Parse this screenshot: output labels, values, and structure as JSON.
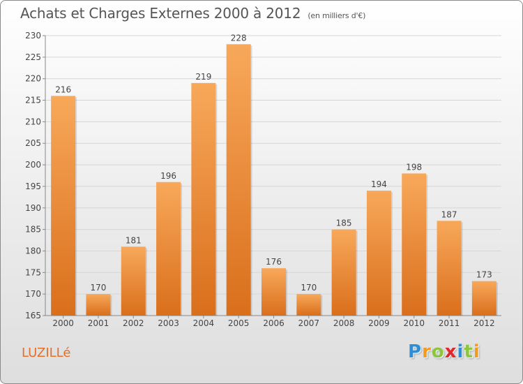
{
  "header": {
    "title": "Achats et Charges Externes 2000 à 2012",
    "unit": "(en milliers d'€)"
  },
  "footer": {
    "place": "LUZILLé",
    "logo": [
      "P",
      "r",
      "o",
      "x",
      "i",
      "t",
      "i"
    ],
    "logo_colors": [
      "#2e8fd6",
      "#f29b1e",
      "#8cc63f",
      "#e3262a",
      "#2e8fd6",
      "#8cc63f",
      "#f29b1e"
    ]
  },
  "colors": {
    "bar_light": "#f8a85a",
    "bar_dark": "#d96f1c",
    "grid": "#d6d6d6",
    "text": "#444444"
  },
  "chart_data": {
    "type": "bar",
    "title": "Achats et Charges Externes 2000 à 2012",
    "xlabel": "",
    "ylabel": "",
    "categories": [
      "2000",
      "2001",
      "2002",
      "2003",
      "2004",
      "2005",
      "2006",
      "2007",
      "2008",
      "2009",
      "2010",
      "2011",
      "2012"
    ],
    "values": [
      216,
      170,
      181,
      196,
      219,
      228,
      176,
      170,
      185,
      194,
      198,
      187,
      173
    ],
    "ylim": [
      165,
      230
    ],
    "yticks": [
      165,
      170,
      175,
      180,
      185,
      190,
      195,
      200,
      205,
      210,
      215,
      220,
      225,
      230
    ],
    "grid": true
  }
}
